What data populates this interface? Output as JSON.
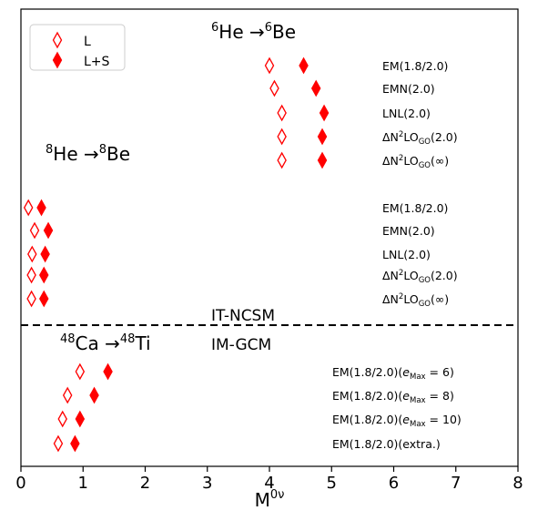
{
  "chart_data": {
    "type": "scatter",
    "xlabel": "M",
    "xlabel_sup": "0ν",
    "xlim": [
      0,
      8
    ],
    "xticks": [
      0,
      1,
      2,
      3,
      4,
      5,
      6,
      7,
      8
    ],
    "legend": {
      "placement": "top-left",
      "entries": [
        {
          "label": "L",
          "marker": "open-diamond",
          "color": "#ff0000"
        },
        {
          "label": "L+S",
          "marker": "filled-diamond",
          "color": "#ff0000"
        }
      ]
    },
    "divider": {
      "style": "dashed",
      "above_label": "IT-NCSM",
      "below_label": "IM-GCM"
    },
    "groups": [
      {
        "process": {
          "a1": "6",
          "e1": "He",
          "a2": "6",
          "e2": "Be"
        },
        "rows": [
          {
            "label": {
              "text": "EM(1.8/2.0)"
            },
            "L": 4.0,
            "LS": 4.55
          },
          {
            "label": {
              "text": "EMN(2.0)"
            },
            "L": 4.08,
            "LS": 4.75
          },
          {
            "label": {
              "text": "LNL(2.0)"
            },
            "L": 4.2,
            "LS": 4.88
          },
          {
            "label": {
              "pre": "ΔN",
              "sup": "2",
              "mid": "LO",
              "sub": "GO",
              "post": "(2.0)"
            },
            "L": 4.2,
            "LS": 4.85
          },
          {
            "label": {
              "pre": "ΔN",
              "sup": "2",
              "mid": "LO",
              "sub": "GO",
              "post": "(∞)"
            },
            "L": 4.2,
            "LS": 4.85
          }
        ]
      },
      {
        "process": {
          "a1": "8",
          "e1": "He",
          "a2": "8",
          "e2": "Be"
        },
        "rows": [
          {
            "label": {
              "text": "EM(1.8/2.0)"
            },
            "L": 0.12,
            "LS": 0.33
          },
          {
            "label": {
              "text": "EMN(2.0)"
            },
            "L": 0.22,
            "LS": 0.44
          },
          {
            "label": {
              "text": "LNL(2.0)"
            },
            "L": 0.18,
            "LS": 0.39
          },
          {
            "label": {
              "pre": "ΔN",
              "sup": "2",
              "mid": "LO",
              "sub": "GO",
              "post": "(2.0)"
            },
            "L": 0.17,
            "LS": 0.37
          },
          {
            "label": {
              "pre": "ΔN",
              "sup": "2",
              "mid": "LO",
              "sub": "GO",
              "post": "(∞)"
            },
            "L": 0.17,
            "LS": 0.37
          }
        ]
      },
      {
        "process": {
          "a1": "48",
          "e1": "Ca",
          "a2": "48",
          "e2": "Ti"
        },
        "rows": [
          {
            "label": {
              "pre": "EM(1.8/2.0)(",
              "it": "e",
              "sub": "Max",
              "post": " = 6)"
            },
            "L": 0.95,
            "LS": 1.4
          },
          {
            "label": {
              "pre": "EM(1.8/2.0)(",
              "it": "e",
              "sub": "Max",
              "post": " = 8)"
            },
            "L": 0.75,
            "LS": 1.18
          },
          {
            "label": {
              "pre": "EM(1.8/2.0)(",
              "it": "e",
              "sub": "Max",
              "post": " = 10)"
            },
            "L": 0.67,
            "LS": 0.95
          },
          {
            "label": {
              "text": "EM(1.8/2.0)(extra.)"
            },
            "L": 0.6,
            "LS": 0.87
          }
        ]
      }
    ]
  }
}
